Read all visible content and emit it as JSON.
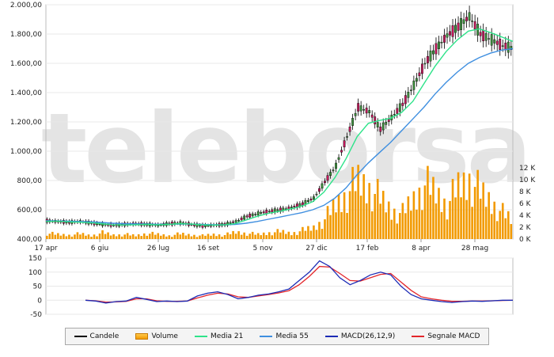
{
  "chart_data": {
    "type": "candlestick",
    "x_ticks": [
      "17 apr",
      "6 giu",
      "26 lug",
      "16 set",
      "5 nov",
      "27 dic",
      "17 feb",
      "8 apr",
      "28 mag"
    ],
    "price_axis": {
      "ylim": [
        400,
        2000
      ],
      "ticks": [
        "400,00",
        "600,00",
        "800,00",
        "1.000,00",
        "1.200,00",
        "1.400,00",
        "1.600,00",
        "1.800,00",
        "2.000,00"
      ]
    },
    "volume_axis": {
      "ylim": [
        0,
        14000
      ],
      "ticks": [
        "0 K",
        "2 K",
        "4 K",
        "6 K",
        "8 K",
        "10 K",
        "12 K"
      ]
    },
    "macd_axis": {
      "ylim": [
        -50,
        150
      ],
      "ticks": [
        "-50",
        "0",
        "50",
        "100",
        "150"
      ]
    },
    "price_close": [
      525,
      520,
      515,
      520,
      510,
      500,
      495,
      500,
      505,
      500,
      495,
      505,
      510,
      500,
      490,
      495,
      500,
      520,
      555,
      575,
      590,
      600,
      615,
      640,
      680,
      790,
      900,
      1100,
      1300,
      1270,
      1150,
      1230,
      1320,
      1450,
      1600,
      1700,
      1790,
      1850,
      1920,
      1800,
      1760,
      1720,
      1700
    ],
    "media21": [
      520,
      522,
      518,
      515,
      512,
      505,
      498,
      496,
      498,
      500,
      497,
      500,
      505,
      503,
      497,
      495,
      497,
      505,
      530,
      555,
      575,
      590,
      605,
      625,
      655,
      720,
      820,
      950,
      1100,
      1190,
      1210,
      1225,
      1265,
      1340,
      1460,
      1580,
      1680,
      1760,
      1820,
      1835,
      1810,
      1780,
      1750
    ],
    "media55": [
      525,
      524,
      522,
      520,
      518,
      514,
      508,
      505,
      504,
      503,
      501,
      501,
      502,
      502,
      500,
      498,
      498,
      500,
      508,
      520,
      535,
      550,
      565,
      580,
      600,
      630,
      680,
      750,
      840,
      920,
      990,
      1060,
      1140,
      1220,
      1300,
      1390,
      1470,
      1540,
      1600,
      1640,
      1670,
      1690,
      1700
    ],
    "volume_k": [
      1.0,
      0.8,
      0.7,
      0.9,
      0.6,
      1.1,
      0.7,
      0.8,
      0.6,
      1.0,
      0.8,
      0.6,
      0.9,
      0.7,
      0.6,
      0.8,
      0.7,
      1.2,
      1.0,
      0.8,
      1.1,
      1.3,
      1.0,
      1.5,
      2.0,
      3.5,
      6.0,
      8.0,
      10.0,
      9.0,
      7.0,
      5.0,
      4.5,
      7.0,
      9.5,
      8.0,
      6.0,
      9.0,
      10.5,
      8.0,
      6.5,
      4.5,
      3.0
    ],
    "macd": [
      0,
      -3,
      -10,
      -5,
      -3,
      10,
      3,
      -5,
      -3,
      -5,
      -3,
      15,
      25,
      30,
      20,
      5,
      10,
      18,
      22,
      30,
      40,
      70,
      100,
      140,
      120,
      80,
      55,
      70,
      90,
      100,
      90,
      50,
      20,
      5,
      0,
      -5,
      -8,
      -5,
      -3,
      -4,
      -2,
      0,
      0
    ],
    "signal_macd": [
      0,
      -2,
      -7,
      -6,
      -4,
      5,
      5,
      -2,
      -4,
      -4,
      -3,
      8,
      18,
      25,
      22,
      12,
      10,
      15,
      20,
      26,
      34,
      55,
      85,
      120,
      118,
      95,
      70,
      68,
      80,
      92,
      95,
      65,
      35,
      12,
      5,
      0,
      -4,
      -4,
      -3,
      -3,
      -2,
      -1,
      0
    ],
    "legend": [
      "Candele",
      "Volume",
      "Media 21",
      "Media 55",
      "MACD(26,12,9)",
      "Segnale MACD"
    ],
    "watermark": "teleborsa",
    "colors": {
      "candle": "#000000",
      "volume": "#f29a00",
      "media21": "#2ee38a",
      "media55": "#3f8fe0",
      "macd": "#1c2bb5",
      "signal": "#e3262b"
    }
  }
}
